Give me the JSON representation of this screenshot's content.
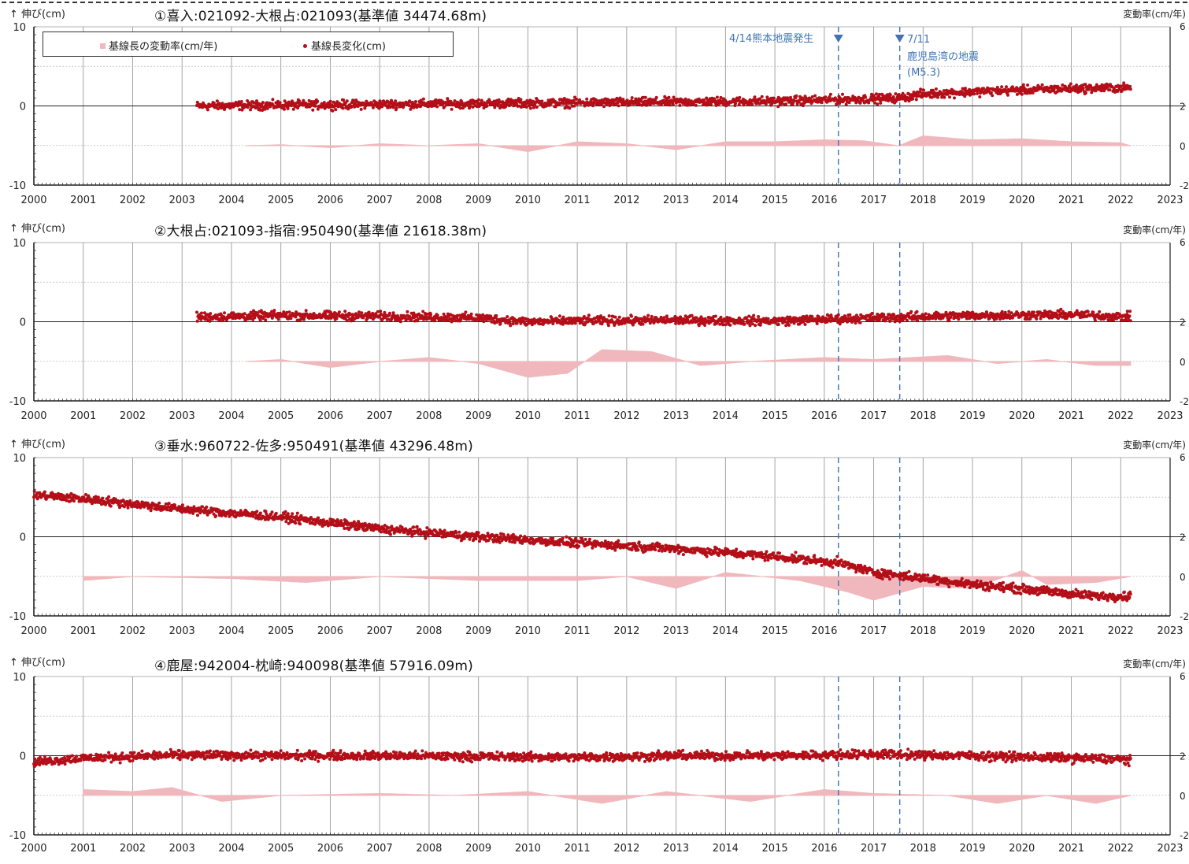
{
  "common": {
    "left_axis_label": "↑ 伸び(cm)",
    "right_axis_label": "変動率(cm/年)",
    "x_tick_labels": [
      "2000",
      "2001",
      "2002",
      "2003",
      "2004",
      "2005",
      "2006",
      "2007",
      "2008",
      "2009",
      "2010",
      "2011",
      "2012",
      "2013",
      "2014",
      "2015",
      "2016",
      "2017",
      "2018",
      "2019",
      "2020",
      "2021",
      "2022",
      "2023"
    ],
    "left_tick_labels": [
      "10",
      "0",
      "-10"
    ],
    "right_tick_labels": [
      "6",
      "2",
      "0",
      "-2"
    ],
    "event_lines": [
      "2016-04-14",
      "2017-07-11"
    ]
  },
  "legend": {
    "rate_label": "基線長の変動率(cm/年)",
    "change_label": "基線長変化(cm)"
  },
  "annotations": {
    "kumamoto": "4/14熊本地震発生",
    "kagoshima_date": "7/11",
    "kagoshima_name": "鹿児島湾の地震",
    "kagoshima_mag": "(M5.3)"
  },
  "colors": {
    "points": "#b40f18",
    "rate_fill": "#f0b8bd",
    "event_line": "#3d73b6",
    "grid": "#9a9a9a"
  },
  "chart_data": [
    {
      "type": "scatter",
      "title": "①喜入:021092-大根占:021093(基準値 34474.68m)",
      "xlim": [
        2000,
        2023
      ],
      "ylim": [
        -10,
        10
      ],
      "y2lim": [
        -2,
        6
      ],
      "series": [
        {
          "name": "基線長変化(cm)",
          "x": [
            2003.3,
            2005,
            2007,
            2009,
            2011,
            2013,
            2015,
            2016.3,
            2017.5,
            2018,
            2019,
            2020,
            2021,
            2022.2
          ],
          "values": [
            0.0,
            0.1,
            0.2,
            0.3,
            0.4,
            0.5,
            0.6,
            0.8,
            1.0,
            1.5,
            1.8,
            2.0,
            2.2,
            2.3
          ]
        },
        {
          "name": "基線長の変動率(cm/年)",
          "x": [
            2004.3,
            2005,
            2006,
            2007,
            2008,
            2009,
            2010,
            2011,
            2012,
            2013,
            2014,
            2015,
            2016,
            2016.8,
            2017.5,
            2018,
            2019,
            2020,
            2021,
            2022,
            2022.2
          ],
          "values": [
            0.0,
            0.05,
            -0.1,
            0.1,
            0.0,
            0.1,
            -0.3,
            0.2,
            0.1,
            -0.2,
            0.2,
            0.2,
            0.3,
            0.25,
            0.0,
            0.5,
            0.3,
            0.35,
            0.2,
            0.15,
            0.0
          ]
        }
      ]
    },
    {
      "type": "scatter",
      "title": "②大根占:021093-指宿:950490(基準値 21618.38m)",
      "xlim": [
        2000,
        2023
      ],
      "ylim": [
        -10,
        10
      ],
      "y2lim": [
        -2,
        6
      ],
      "series": [
        {
          "name": "基線長変化(cm)",
          "x": [
            2003.3,
            2005,
            2007,
            2009,
            2010,
            2011,
            2013,
            2015,
            2017,
            2019,
            2021,
            2022.2
          ],
          "values": [
            0.6,
            0.8,
            0.7,
            0.5,
            0.0,
            0.1,
            0.2,
            0.1,
            0.5,
            0.8,
            0.9,
            0.6
          ]
        },
        {
          "name": "基線長の変動率(cm/年)",
          "x": [
            2004.3,
            2005,
            2006,
            2007,
            2008,
            2009,
            2010,
            2010.8,
            2011.5,
            2012.5,
            2013.5,
            2014.5,
            2016,
            2017,
            2018.5,
            2019.5,
            2020.5,
            2021.5,
            2022.2
          ],
          "values": [
            0.0,
            0.1,
            -0.3,
            0.0,
            0.2,
            -0.1,
            -0.8,
            -0.6,
            0.6,
            0.5,
            -0.2,
            0.0,
            0.2,
            0.1,
            0.3,
            -0.1,
            0.1,
            -0.2,
            -0.2
          ]
        }
      ]
    },
    {
      "type": "scatter",
      "title": "③垂水:960722-佐多:950491(基準値 43296.48m)",
      "xlim": [
        2000,
        2023
      ],
      "ylim": [
        -10,
        10
      ],
      "y2lim": [
        -2,
        6
      ],
      "series": [
        {
          "name": "基線長変化(cm)",
          "x": [
            2000,
            2001,
            2003,
            2005,
            2007,
            2009,
            2011,
            2013,
            2015,
            2016.3,
            2017,
            2019,
            2021,
            2021.5,
            2022.2
          ],
          "values": [
            5.3,
            4.8,
            3.5,
            2.5,
            1.0,
            0.0,
            -0.8,
            -1.5,
            -2.5,
            -3.3,
            -4.5,
            -6.0,
            -7.2,
            -7.5,
            -7.5
          ]
        },
        {
          "name": "基線長の変動率(cm/年)",
          "x": [
            2001,
            2002,
            2004,
            2005.5,
            2007,
            2009,
            2011,
            2012,
            2013,
            2014,
            2015.5,
            2016.5,
            2017,
            2018,
            2019,
            2020,
            2020.5,
            2021.5,
            2022.2
          ],
          "values": [
            -0.2,
            0.0,
            -0.1,
            -0.3,
            0.0,
            -0.2,
            -0.2,
            0.0,
            -0.6,
            0.2,
            -0.2,
            -0.8,
            -1.2,
            -0.5,
            -0.6,
            0.3,
            -0.4,
            -0.3,
            0.0
          ]
        }
      ]
    },
    {
      "type": "scatter",
      "title": "④鹿屋:942004-枕崎:940098(基準値 57916.09m)",
      "xlim": [
        2000,
        2023
      ],
      "ylim": [
        -10,
        10
      ],
      "y2lim": [
        -2,
        6
      ],
      "series": [
        {
          "name": "基線長変化(cm)",
          "x": [
            2000,
            2001,
            2003,
            2005,
            2007,
            2009,
            2011,
            2013,
            2015,
            2017,
            2019,
            2021,
            2022.2
          ],
          "values": [
            -0.8,
            -0.3,
            0.1,
            0.0,
            0.0,
            -0.1,
            -0.2,
            0.0,
            0.0,
            0.2,
            0.0,
            -0.3,
            -0.5
          ]
        },
        {
          "name": "基線長の変動率(cm/年)",
          "x": [
            2001,
            2002,
            2002.8,
            2003.8,
            2005,
            2007,
            2008.5,
            2010,
            2011.5,
            2012.8,
            2014.5,
            2016,
            2017,
            2018.5,
            2019.5,
            2020.5,
            2021.5,
            2022.2
          ],
          "values": [
            0.3,
            0.2,
            0.4,
            -0.3,
            0.0,
            0.1,
            0.0,
            0.2,
            -0.4,
            0.2,
            -0.3,
            0.3,
            0.1,
            0.0,
            -0.4,
            0.0,
            -0.4,
            0.0
          ]
        }
      ]
    }
  ]
}
